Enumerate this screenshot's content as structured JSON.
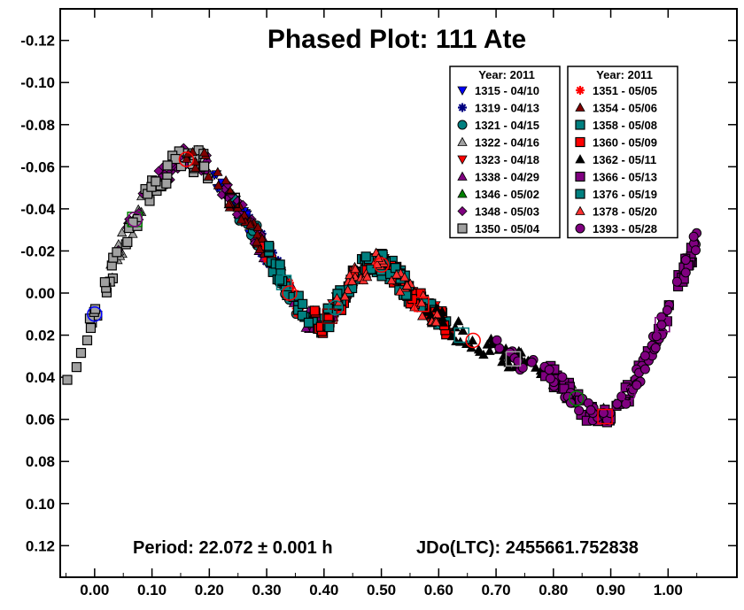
{
  "chart_data": {
    "type": "scatter",
    "title": "Phased Plot: 111 Ate",
    "xlabel": "",
    "ylabel": "",
    "xlim": [
      -0.06,
      1.12
    ],
    "ylim": [
      0.135,
      -0.135
    ],
    "x_ticks": [
      "0.00",
      "0.10",
      "0.20",
      "0.30",
      "0.40",
      "0.50",
      "0.60",
      "0.70",
      "0.80",
      "0.90",
      "1.00"
    ],
    "x_tick_values": [
      0.0,
      0.1,
      0.2,
      0.3,
      0.4,
      0.5,
      0.6,
      0.7,
      0.8,
      0.9,
      1.0
    ],
    "y_ticks": [
      "-0.12",
      "-0.10",
      "-0.08",
      "-0.06",
      "-0.04",
      "-0.02",
      "0.00",
      "0.02",
      "0.04",
      "0.06",
      "0.08",
      "0.10",
      "0.12"
    ],
    "y_tick_values": [
      -0.12,
      -0.1,
      -0.08,
      -0.06,
      -0.04,
      -0.02,
      0.0,
      0.02,
      0.04,
      0.06,
      0.08,
      0.1,
      0.12
    ],
    "y_inverted": true,
    "grid": false,
    "legend_placement": "top-right",
    "legend_header": "Year: 2011",
    "curve": {
      "x": [
        -0.05,
        0.0,
        0.05,
        0.1,
        0.15,
        0.19,
        0.22,
        0.25,
        0.28,
        0.31,
        0.34,
        0.37,
        0.4,
        0.43,
        0.46,
        0.49,
        0.52,
        0.55,
        0.58,
        0.6,
        0.64,
        0.68,
        0.72,
        0.76,
        0.8,
        0.84,
        0.87,
        0.9,
        0.93,
        0.96,
        0.99,
        1.02,
        1.05
      ],
      "y": [
        0.045,
        0.01,
        -0.025,
        -0.05,
        -0.064,
        -0.062,
        -0.052,
        -0.04,
        -0.028,
        -0.015,
        0.0,
        0.012,
        0.015,
        0.003,
        -0.01,
        -0.015,
        -0.01,
        0.0,
        0.008,
        0.012,
        0.02,
        0.025,
        0.03,
        0.035,
        0.04,
        0.05,
        0.06,
        0.058,
        0.048,
        0.035,
        0.015,
        -0.005,
        -0.025
      ],
      "scatter": 0.0055
    },
    "series": [
      {
        "name": "1315 - 04/10",
        "marker": "triangle-down",
        "color": "#0000ff",
        "x_range": [
          0.2,
          0.28
        ]
      },
      {
        "name": "1319 - 04/13",
        "marker": "asterisk",
        "color": "#000080",
        "x_range": [
          0.24,
          0.36
        ]
      },
      {
        "name": "1321 - 04/15",
        "marker": "circle",
        "color": "#008080",
        "x_range": [
          0.24,
          0.38
        ]
      },
      {
        "name": "1322 - 04/16",
        "marker": "triangle",
        "color": "#a0a0a0",
        "x_range": [
          0.02,
          0.1
        ]
      },
      {
        "name": "1323 - 04/18",
        "marker": "triangle-down",
        "color": "#ff0000",
        "x_range": [
          0.38,
          0.6
        ]
      },
      {
        "name": "1338 - 04/29",
        "marker": "triangle",
        "color": "#800080",
        "x_range": [
          0.28,
          0.42
        ]
      },
      {
        "name": "1346 - 05/02",
        "marker": "triangle",
        "color": "#008000",
        "x_range": [
          0.82,
          0.9
        ]
      },
      {
        "name": "1348 - 05/03",
        "marker": "diamond",
        "color": "#800080",
        "x_range": [
          0.04,
          0.3
        ]
      },
      {
        "name": "1350 - 05/04",
        "marker": "square",
        "color": "#a0a0a0",
        "x_range": [
          -0.05,
          0.2
        ]
      },
      {
        "name": "1351 - 05/05",
        "marker": "asterisk",
        "color": "#ff0000",
        "x_range": [
          0.28,
          0.36
        ]
      },
      {
        "name": "1354 - 05/06",
        "marker": "triangle",
        "color": "#800000",
        "x_range": [
          0.16,
          0.3
        ]
      },
      {
        "name": "1358 - 05/08",
        "marker": "square",
        "color": "#008080",
        "x_range": [
          0.3,
          0.62
        ]
      },
      {
        "name": "1360 - 05/09",
        "marker": "square",
        "color": "#ff0000",
        "x_range": [
          0.38,
          0.62
        ]
      },
      {
        "name": "1362 - 05/11",
        "marker": "triangle",
        "color": "#000000",
        "x_range": [
          0.58,
          0.82
        ]
      },
      {
        "name": "1366 - 05/13",
        "marker": "square",
        "color": "#800080",
        "x_range": [
          0.78,
          1.05
        ]
      },
      {
        "name": "1376 - 05/19",
        "marker": "square",
        "color": "#008080",
        "x_range": [
          0.4,
          0.56
        ]
      },
      {
        "name": "1378 - 05/20",
        "marker": "triangle",
        "color": "#ff3030",
        "x_range": [
          0.42,
          0.6
        ]
      },
      {
        "name": "1393 - 05/28",
        "marker": "circle",
        "color": "#800080",
        "x_range": [
          0.7,
          1.05
        ]
      }
    ],
    "annotations": {
      "period": "Period: 22.072 ± 0.001 h",
      "jdo": "JDo(LTC): 2455661.752838"
    }
  }
}
